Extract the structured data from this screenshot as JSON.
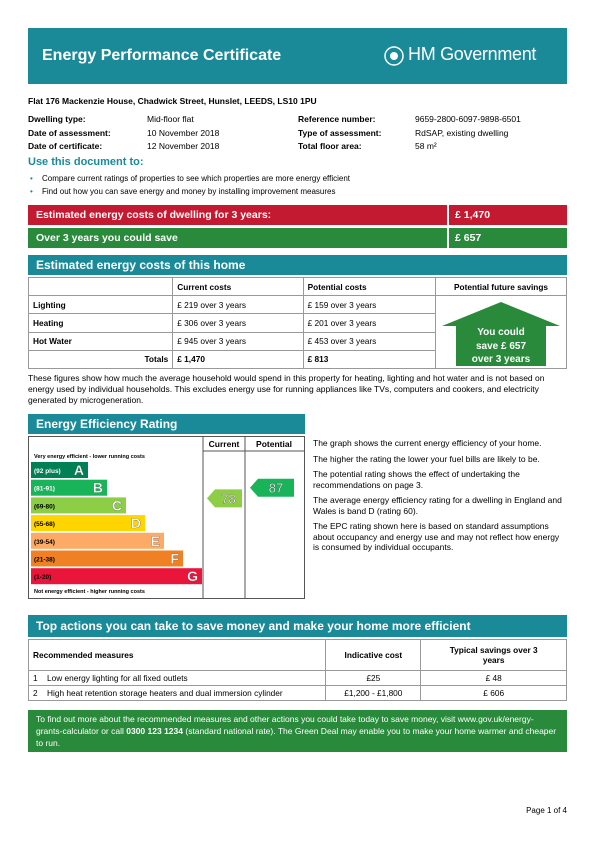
{
  "header": {
    "title": "Energy Performance Certificate",
    "logo": "HM Government"
  },
  "address": "Flat 176 Mackenzie House, Chadwick Street, Hunslet, LEEDS, LS10 1PU",
  "details": {
    "left": [
      [
        "Dwelling type:",
        "Mid-floor flat"
      ],
      [
        "Date of assessment:",
        "10 November 2018"
      ],
      [
        "Date of certificate:",
        "12 November 2018"
      ]
    ],
    "right": [
      [
        "Reference number:",
        "9659-2800-6097-9898-6501"
      ],
      [
        "Type of assessment:",
        "RdSAP, existing dwelling"
      ],
      [
        "Total floor area:",
        "58 m²"
      ]
    ]
  },
  "use": {
    "heading": "Use this document to:",
    "items": [
      "Compare current ratings of properties to see which properties are more energy efficient",
      "Find out how you can save energy and money by installing improvement measures"
    ]
  },
  "summary": [
    [
      "Estimated energy costs of dwelling for 3 years:",
      "£ 1,470"
    ],
    [
      "Over 3 years you could save",
      "£ 657"
    ]
  ],
  "costs": {
    "title": "Estimated energy costs of this home",
    "headers": [
      "Current costs",
      "Potential costs",
      "Potential future savings"
    ],
    "rows": [
      [
        "Lighting",
        "£ 219 over 3 years",
        "£ 159 over 3 years"
      ],
      [
        "Heating",
        "£ 306 over 3 years",
        "£ 201 over 3 years"
      ],
      [
        "Hot Water",
        "£ 945 over 3 years",
        "£ 453 over 3 years"
      ]
    ],
    "totals": [
      "Totals",
      "£ 1,470",
      "£ 813"
    ],
    "savings": [
      "You could",
      "save £ 657",
      "over 3 years"
    ],
    "note": "These figures show how much the average household would spend in this property for heating, lighting and hot water and is not based on energy used by individual households. This excludes energy use for running appliances like TVs, computers and cookers, and electricity generated by microgeneration."
  },
  "rating": {
    "title": "Energy Efficiency Rating",
    "columns": [
      "Current",
      "Potential"
    ],
    "top_label": "Very energy efficient - lower running costs",
    "bottom_label": "Not energy efficient - higher running costs",
    "bands": [
      {
        "range": "(92 plus)",
        "letter": "A",
        "color": "#008054"
      },
      {
        "range": "(81-91)",
        "letter": "B",
        "color": "#19b459"
      },
      {
        "range": "(69-80)",
        "letter": "C",
        "color": "#8dce46"
      },
      {
        "range": "(55-68)",
        "letter": "D",
        "color": "#ffd500"
      },
      {
        "range": "(39-54)",
        "letter": "E",
        "color": "#fcaa65"
      },
      {
        "range": "(21-38)",
        "letter": "F",
        "color": "#ef8023"
      },
      {
        "range": "(1-20)",
        "letter": "G",
        "color": "#e9153b"
      }
    ],
    "current": 78,
    "potential": 87,
    "paragraphs": [
      "The graph shows the current energy efficiency of your home.",
      "The higher the rating the lower your fuel bills are likely to be.",
      "The potential rating shows the effect of undertaking the recommendations on page 3.",
      "The average energy efficiency rating for a dwelling in England and Wales is band D (rating 60).",
      "The EPC rating shown here is based on standard assumptions about occupancy and energy use and may not reflect how energy is consumed by individual occupants."
    ]
  },
  "actions": {
    "title": "Top actions you can take to save money and make your home more efficient",
    "headers": [
      "Recommended measures",
      "Indicative cost",
      "Typical savings over 3 years"
    ],
    "rows": [
      [
        "1",
        "Low energy lighting for all fixed outlets",
        "£25",
        "£ 48"
      ],
      [
        "2",
        "High heat retention storage heaters and dual immersion cylinder",
        "£1,200 - £1,800",
        "£ 606"
      ]
    ]
  },
  "footer": {
    "before": "To find out more about the recommended measures and other actions you could take today to save money, visit www.gov.uk/energy-grants-calculator or call",
    "phone": "0300 123 1234",
    "after": "(standard national rate). The Green Deal may enable you to make your home warmer and cheaper to run."
  },
  "page": "Page 1 of 4"
}
